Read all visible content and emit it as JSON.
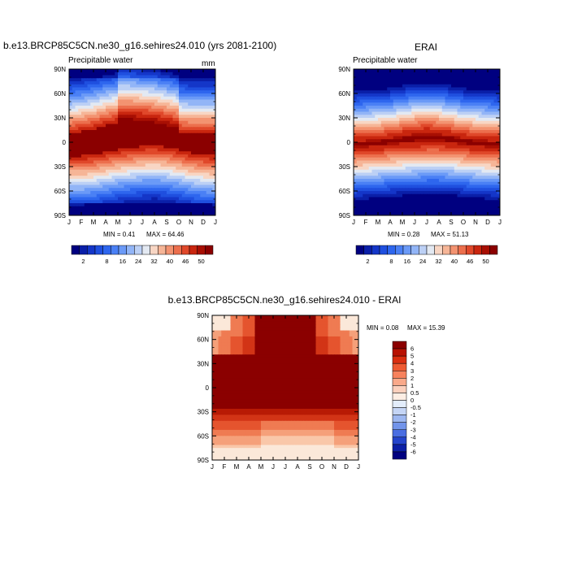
{
  "months": [
    "J",
    "F",
    "M",
    "A",
    "M",
    "J",
    "J",
    "A",
    "S",
    "O",
    "N",
    "D",
    "J"
  ],
  "lat_labels": [
    "90N",
    "60N",
    "30N",
    "0",
    "30S",
    "60S",
    "90S"
  ],
  "chart_data": [
    {
      "type": "heatmap",
      "title": "b.e13.BRCP85C5CN.ne30_g16.sehires24.010 (yrs 2081-2100)",
      "left_label": "Precipitable water",
      "units": "mm",
      "min_text": "MIN =   0.41",
      "max_text": "MAX =  64.46",
      "colorbar": {
        "ticks": [
          "2",
          "8",
          "16",
          "24",
          "32",
          "40",
          "46",
          "50"
        ],
        "levels": [
          2,
          4,
          6,
          8,
          12,
          16,
          20,
          24,
          28,
          32,
          36,
          40,
          44,
          46,
          48,
          50
        ]
      },
      "band_lat_north": [
        10,
        13,
        16,
        21,
        24,
        24,
        22,
        20,
        16,
        12,
        10,
        10,
        10
      ],
      "band_lat_south": [
        -17,
        -17,
        -15,
        -12,
        -9,
        -7,
        -5,
        -4,
        -6,
        -9,
        -13,
        -15,
        -17
      ]
    },
    {
      "type": "heatmap",
      "title": "ERAI",
      "left_label": "Precipitable water",
      "units": "",
      "min_text": "MIN =   0.28",
      "max_text": "MAX =  51.13",
      "colorbar": {
        "ticks": [
          "2",
          "8",
          "16",
          "24",
          "32",
          "40",
          "46",
          "50"
        ],
        "levels": [
          2,
          4,
          6,
          8,
          12,
          16,
          20,
          24,
          28,
          32,
          36,
          40,
          44,
          46,
          48,
          50
        ]
      },
      "band_lat_north": [
        2,
        3,
        4,
        6,
        9,
        12,
        13,
        12,
        9,
        6,
        4,
        3,
        2
      ],
      "band_lat_south": [
        -8,
        -7,
        -6,
        -4,
        -3,
        -2,
        -1,
        -1,
        -2,
        -4,
        -6,
        -7,
        -8
      ]
    },
    {
      "type": "heatmap",
      "title": "b.e13.BRCP85C5CN.ne30_g16.sehires24.010 - ERAI",
      "min_text": "MIN =   0.08",
      "max_text": "MAX =  15.39",
      "colorbar": {
        "labels": [
          "6",
          "5",
          "4",
          "3",
          "2",
          "1",
          "0.5",
          "0",
          "-0.5",
          "-1",
          "-2",
          "-3",
          "-4",
          "-5",
          "-6"
        ]
      }
    }
  ],
  "colors": {
    "seq": [
      "#000080",
      "#0a1fa8",
      "#1436c8",
      "#1f4fdf",
      "#2e66ee",
      "#4a80f5",
      "#6b9af7",
      "#92b5f7",
      "#bcd0f5",
      "#e3e9f2",
      "#f8d6c4",
      "#f6b597",
      "#f39371",
      "#ec6f4d",
      "#e0482a",
      "#c9260f",
      "#a80f03",
      "#8b0000"
    ],
    "div_colorbar": [
      "#8b0000",
      "#b81203",
      "#da2e10",
      "#ee5a32",
      "#f7825d",
      "#f9a98a",
      "#fbd0bd",
      "#fdeee4",
      "#e3edfb",
      "#c5d5f5",
      "#9db7f0",
      "#7294ea",
      "#4a6ee2",
      "#2444cc",
      "#0b1fa6",
      "#000080"
    ],
    "div_fill": [
      "#fbe8d9",
      "#f9c7a9",
      "#f5a07a",
      "#ef7b52",
      "#e5542e",
      "#d23416",
      "#b81a05",
      "#8b0000"
    ]
  }
}
